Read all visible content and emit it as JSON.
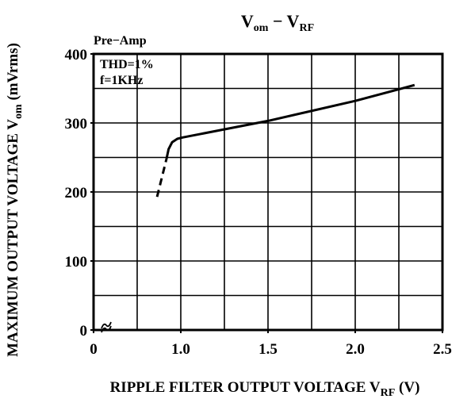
{
  "chart_data": {
    "type": "line",
    "title": [
      "V",
      "om",
      " −  V",
      "RF"
    ],
    "ylabel": [
      "MAXIMUM  OUTPUT  VOLTAGE  V",
      "om",
      "  (mVrms)"
    ],
    "xlabel": [
      "RIPPLE  FILTER  OUTPUT  VOLTAGE  V",
      "RF",
      "  (V)"
    ],
    "annotations": [
      "Pre−Amp",
      "THD=1%",
      "f=1KHz"
    ],
    "xlim": [
      0,
      2.5
    ],
    "x_axis_break": [
      0,
      0.5
    ],
    "xticks": [
      0,
      {
        "value": 1,
        "label": "1.0"
      },
      1.5,
      {
        "value": 2,
        "label": "2.0"
      },
      2.5
    ],
    "xgrid": [
      0.75,
      1,
      1.25,
      1.5,
      1.75,
      2,
      2.25
    ],
    "ylim": [
      0,
      400
    ],
    "yticks": [
      0,
      100,
      200,
      300,
      400
    ],
    "ygrid": [
      50,
      100,
      150,
      200,
      250,
      300,
      350
    ],
    "grid": true,
    "series": [
      {
        "style": "dashed",
        "color": "#000000",
        "x": [
          0.864,
          0.918
        ],
        "values": [
          193,
          248
        ]
      },
      {
        "style": "solid",
        "color": "#000000",
        "x": [
          0.918,
          0.93,
          0.95,
          0.98,
          1.01,
          1.5,
          2.0,
          2.34
        ],
        "values": [
          248,
          262,
          272,
          277,
          279,
          303,
          332,
          355
        ]
      }
    ]
  }
}
